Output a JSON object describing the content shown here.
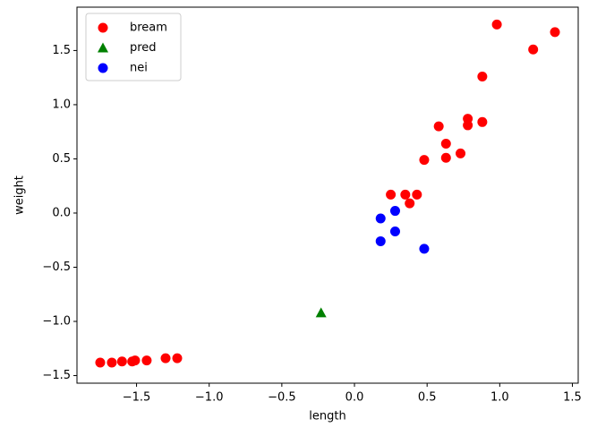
{
  "chart_data": {
    "type": "scatter",
    "xlabel": "length",
    "ylabel": "weight",
    "xlim": [
      -1.91,
      1.54
    ],
    "ylim": [
      -1.57,
      1.9
    ],
    "xticks": [
      {
        "value": -1.5,
        "label": "−1.5"
      },
      {
        "value": -1.0,
        "label": "−1.0"
      },
      {
        "value": -0.5,
        "label": "−0.5"
      },
      {
        "value": 0.0,
        "label": "0.0"
      },
      {
        "value": 0.5,
        "label": "0.5"
      },
      {
        "value": 1.0,
        "label": "1.0"
      },
      {
        "value": 1.5,
        "label": "1.5"
      }
    ],
    "yticks": [
      {
        "value": -1.5,
        "label": "−1.5"
      },
      {
        "value": -1.0,
        "label": "−1.0"
      },
      {
        "value": -0.5,
        "label": "−0.5"
      },
      {
        "value": 0.0,
        "label": "0.0"
      },
      {
        "value": 0.5,
        "label": "0.5"
      },
      {
        "value": 1.0,
        "label": "1.0"
      },
      {
        "value": 1.5,
        "label": "1.5"
      }
    ],
    "legend": "upper left",
    "series": [
      {
        "name": "bream",
        "color": "#ff0000",
        "marker": "circle",
        "x": [
          -1.75,
          -1.67,
          -1.6,
          -1.53,
          -1.51,
          -1.43,
          -1.3,
          -1.22,
          0.25,
          0.35,
          0.43,
          0.38,
          0.48,
          0.58,
          0.63,
          0.63,
          0.73,
          0.78,
          0.78,
          0.88,
          0.88,
          0.98,
          1.23,
          1.38
        ],
        "values": [
          -1.38,
          -1.38,
          -1.37,
          -1.37,
          -1.36,
          -1.36,
          -1.34,
          -1.34,
          0.17,
          0.17,
          0.17,
          0.09,
          0.49,
          0.8,
          0.64,
          0.51,
          0.55,
          0.87,
          0.81,
          0.84,
          1.26,
          1.74,
          1.51,
          1.67
        ]
      },
      {
        "name": "pred",
        "color": "#008000",
        "marker": "triangle",
        "x": [
          -0.23
        ],
        "values": [
          -0.92
        ]
      },
      {
        "name": "nei",
        "color": "#0000ff",
        "marker": "circle",
        "x": [
          0.18,
          0.28,
          0.18,
          0.28,
          0.48
        ],
        "values": [
          -0.05,
          0.02,
          -0.26,
          -0.17,
          -0.33
        ]
      }
    ]
  }
}
